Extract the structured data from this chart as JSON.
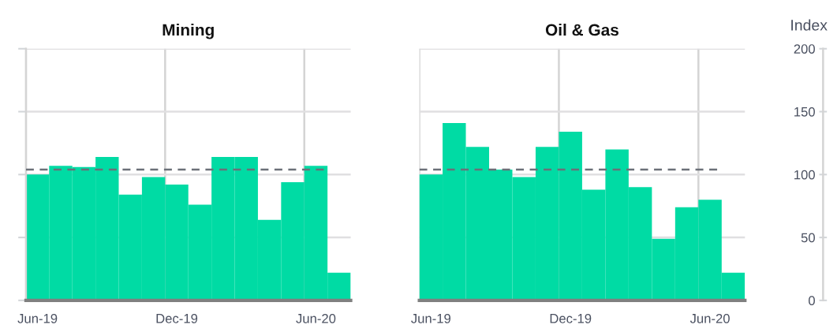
{
  "chart_data": [
    {
      "type": "bar",
      "title": "Mining",
      "categories": [
        "Jun-19",
        null,
        null,
        null,
        null,
        null,
        "Dec-19",
        null,
        null,
        null,
        null,
        null,
        "Jun-20",
        null
      ],
      "series": [
        {
          "color": "#00dba4",
          "values": [
            100,
            107,
            106,
            114,
            84,
            98,
            92,
            76,
            114,
            114,
            64,
            94,
            107,
            22
          ]
        }
      ],
      "ylim": [
        0,
        200
      ],
      "yticks": [
        0,
        50,
        100,
        150,
        200
      ],
      "tick_labels": "x",
      "grid": true,
      "ref_lines": [
        {
          "axis": "y",
          "value": 104,
          "color": "#6b7078",
          "line_style": "dashed"
        }
      ]
    },
    {
      "type": "bar",
      "title": "Oil & Gas",
      "categories": [
        "Jun-19",
        null,
        null,
        null,
        null,
        null,
        "Dec-19",
        null,
        null,
        null,
        null,
        null,
        "Jun-20",
        null
      ],
      "series": [
        {
          "color": "#00dba4",
          "values": [
            100,
            141,
            122,
            104,
            98,
            122,
            134,
            88,
            120,
            90,
            49,
            74,
            80,
            22
          ]
        }
      ],
      "ylabel": "Index",
      "ylim": [
        0,
        200
      ],
      "yticks": [
        0,
        50,
        100,
        150,
        200
      ],
      "grid": true,
      "ref_lines": [
        {
          "axis": "y",
          "value": 104,
          "color": "#6b7078",
          "line_style": "dashed"
        }
      ]
    }
  ]
}
